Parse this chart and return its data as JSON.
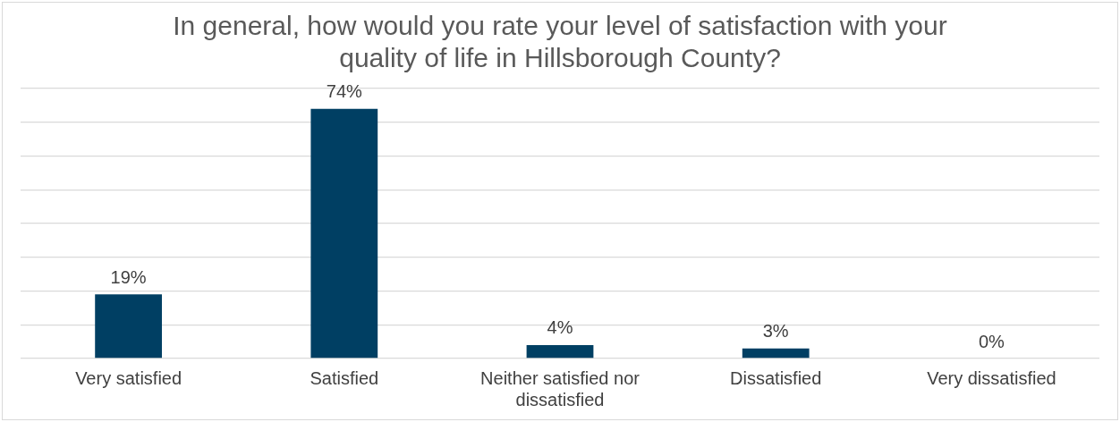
{
  "chart_data": {
    "type": "bar",
    "title": "In general, how would you rate your level of satisfaction with your quality of life in Hillsborough County?",
    "categories": [
      "Very satisfied",
      "Satisfied",
      "Neither satisfied nor dissatisfied",
      "Dissatisfied",
      "Very dissatisfied"
    ],
    "values": [
      19,
      74,
      4,
      3,
      0
    ],
    "value_labels": [
      "19%",
      "74%",
      "4%",
      "3%",
      "0%"
    ],
    "color": "#003f63",
    "grid": "y",
    "tick_labels": "x",
    "legend": false
  }
}
